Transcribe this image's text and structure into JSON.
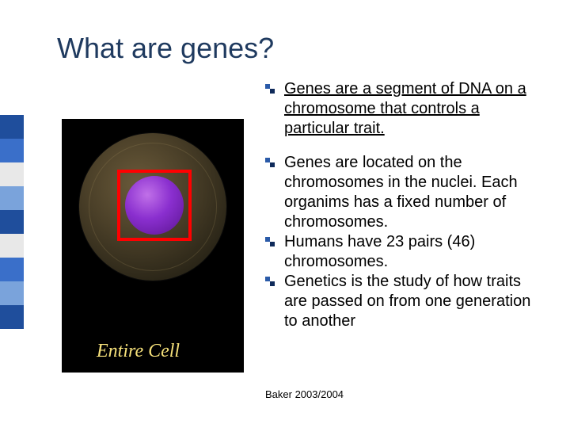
{
  "title": "What are genes?",
  "title_color": "#1f3a5f",
  "title_fontsize": 36,
  "sidebar_colors": [
    "#1f4e9c",
    "#3a6fc9",
    "#e8e8e8",
    "#7aa3db",
    "#1f4e9c",
    "#e8e8e8",
    "#3a6fc9",
    "#7aa3db",
    "#1f4e9c"
  ],
  "figure": {
    "background": "#000000",
    "cell_gradient": [
      "#6a5a3a",
      "#4a3f28",
      "#2b2618",
      "#171409"
    ],
    "nucleus_gradient": [
      "#c070e8",
      "#8a2fcf",
      "#5a148f"
    ],
    "highlight_box_color": "#ff0000",
    "label": "Entire Cell",
    "label_color": "#f5e07a"
  },
  "bullet_icon_colors": {
    "top": "#2a5aa8",
    "bottom": "#0f2a5a"
  },
  "bullets": [
    {
      "text": "Genes are a segment of DNA on a chromosome that controls a particular trait.",
      "underline": true,
      "gap_after": true
    },
    {
      "text": "Genes are located on the chromosomes in the nuclei. Each organims has a fixed number of chromosomes.",
      "underline": false,
      "gap_after": false
    },
    {
      "text": "Humans have 23 pairs (46) chromosomes.",
      "underline": false,
      "gap_after": false
    },
    {
      "text": "Genetics is the study of how traits are passed on from one generation to another",
      "underline": false,
      "gap_after": false
    }
  ],
  "footer": "Baker 2003/2004",
  "body_fontsize": 20,
  "body_color": "#000000"
}
